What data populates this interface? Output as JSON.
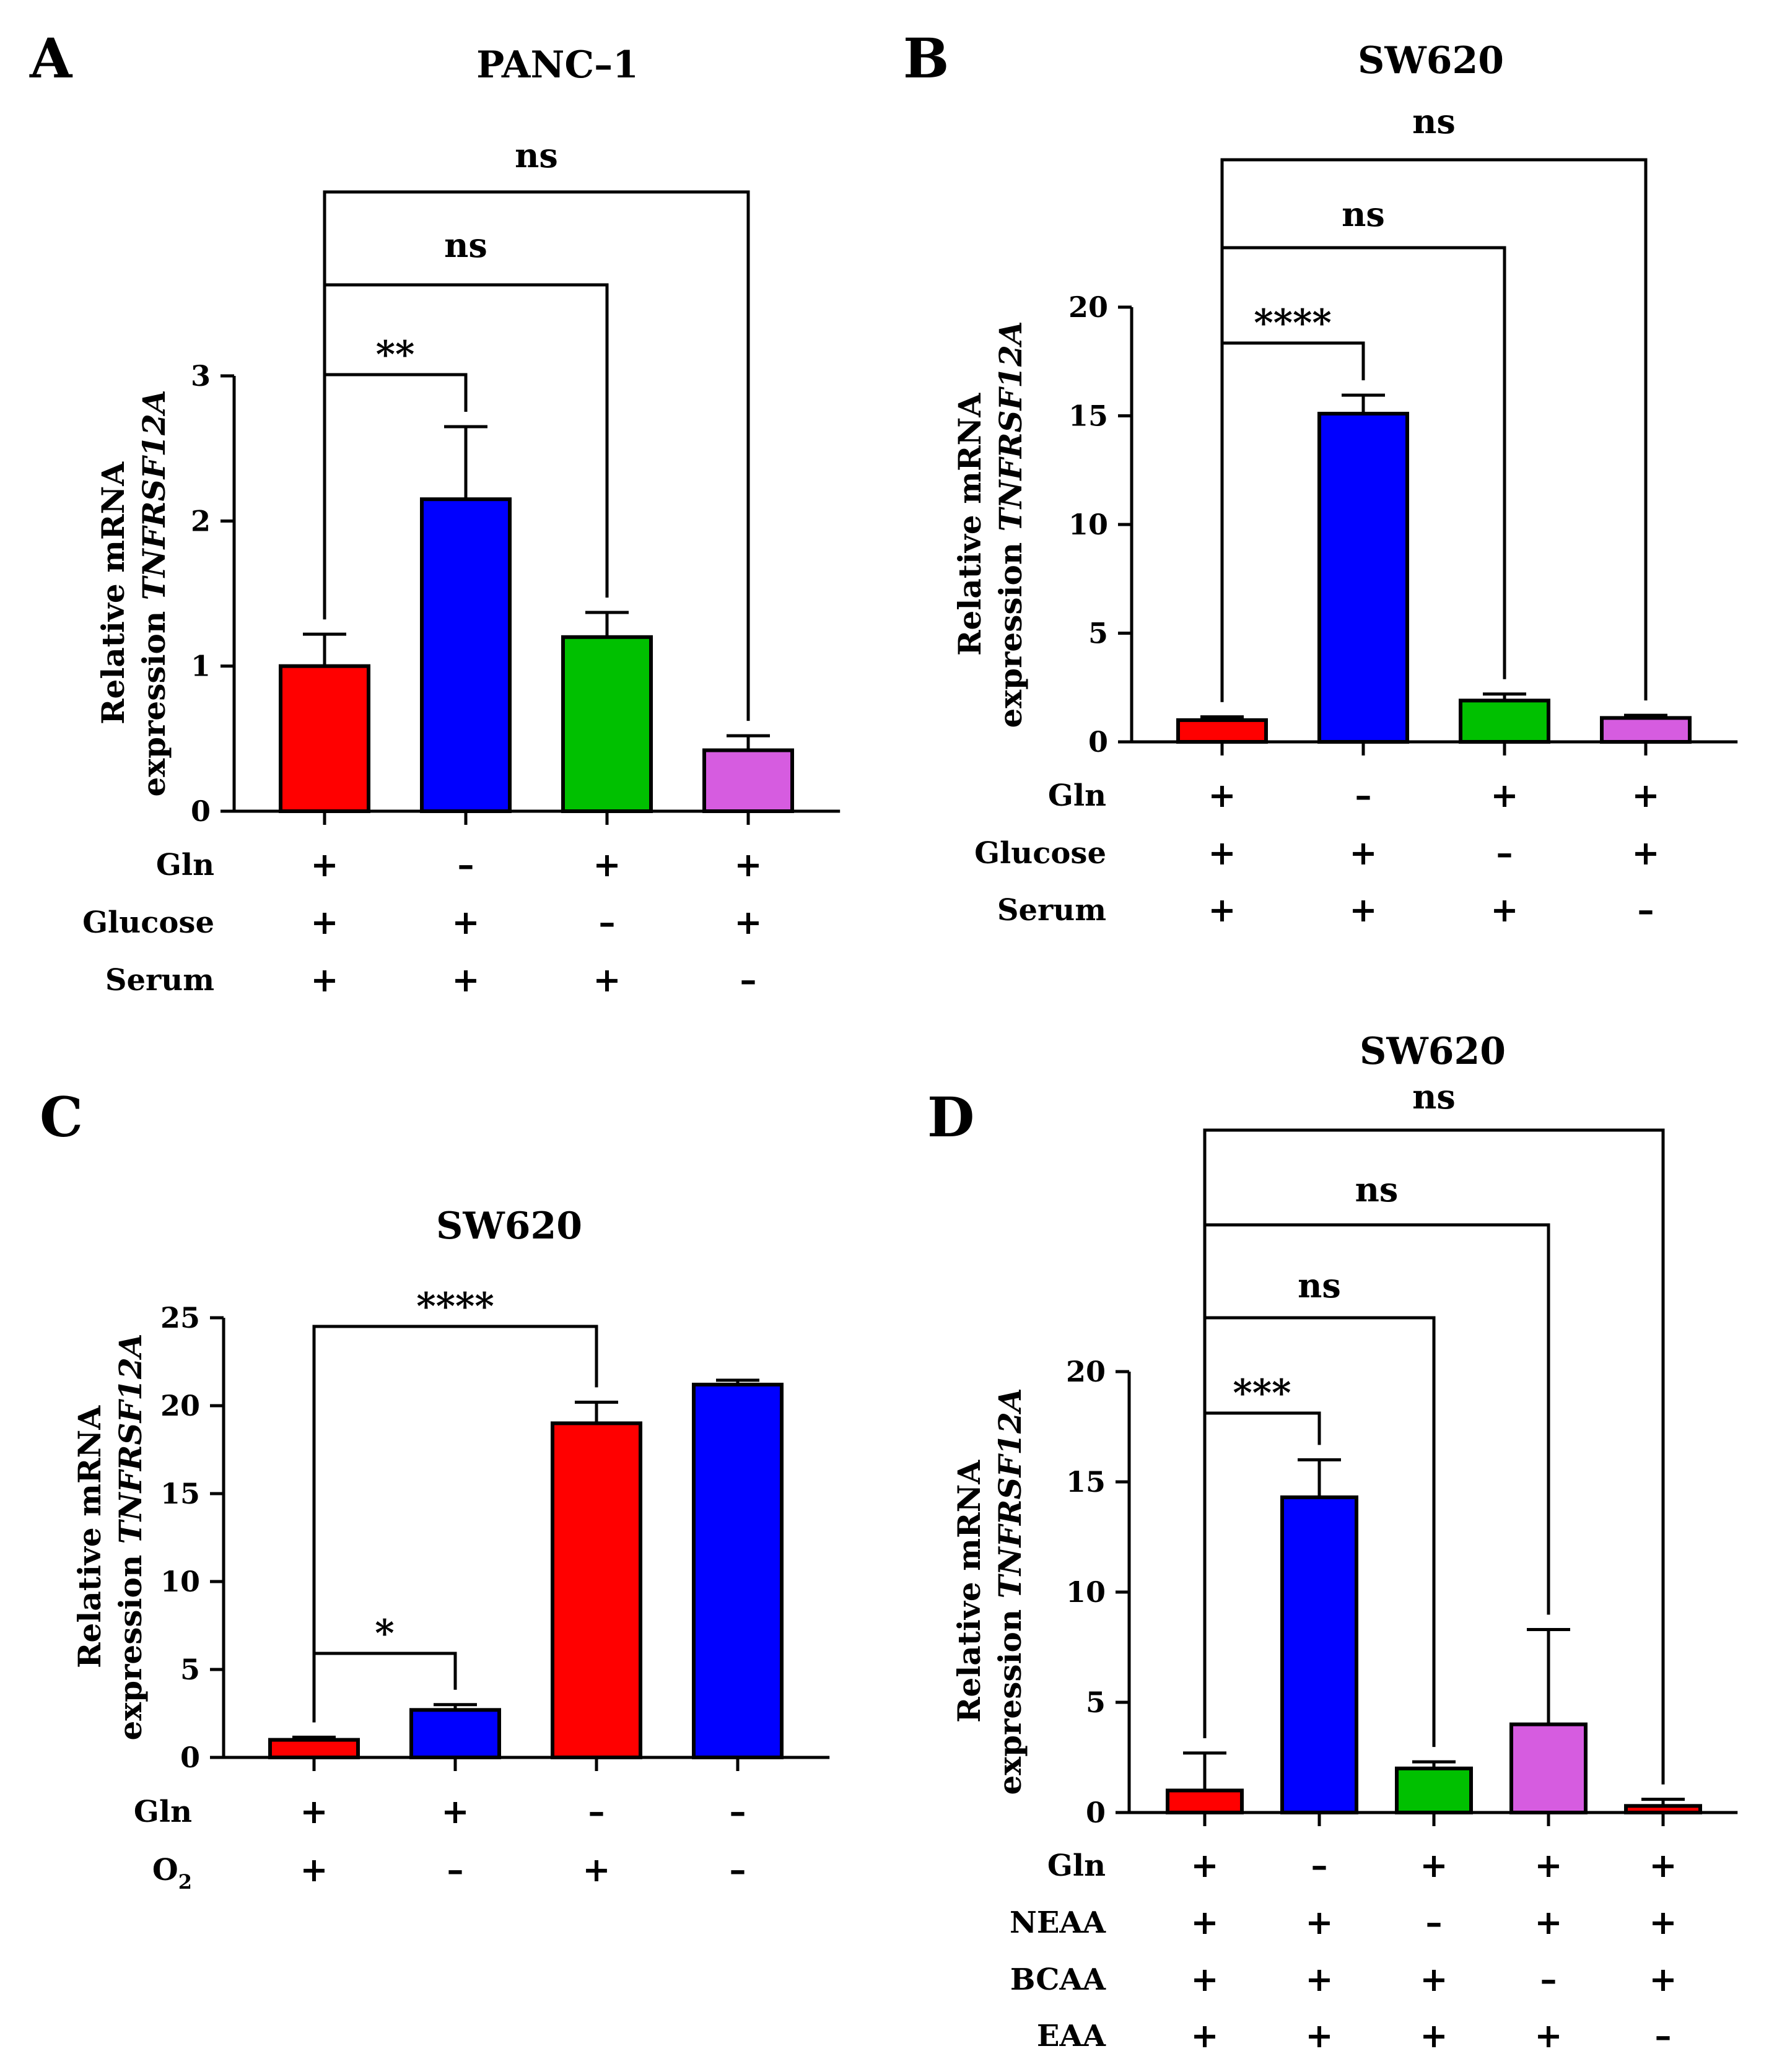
{
  "chart_data": [
    {
      "panel": "A",
      "type": "bar",
      "title": "PANC–1",
      "ylabel_line1": "Relative mRNA",
      "ylabel_line2": "expression",
      "ylabel_gene": "TNFRSF12A",
      "ylim": [
        0,
        3
      ],
      "yticks": [
        "0",
        "1",
        "2",
        "3"
      ],
      "values": [
        1.0,
        2.15,
        1.2,
        0.42
      ],
      "errors": [
        0.22,
        0.5,
        0.17,
        0.1
      ],
      "colors": [
        "#ff0000",
        "#0000ff",
        "#00c000",
        "#d65ce0"
      ],
      "conditions": [
        {
          "label": "Gln",
          "signs": [
            "+",
            "–",
            "+",
            "+"
          ]
        },
        {
          "label": "Glucose",
          "signs": [
            "+",
            "+",
            "–",
            "+"
          ]
        },
        {
          "label": "Serum",
          "signs": [
            "+",
            "+",
            "+",
            "–"
          ]
        }
      ],
      "comparisons": [
        {
          "from": 0,
          "to": 1,
          "label": "**"
        },
        {
          "from": 0,
          "to": 2,
          "label": "ns"
        },
        {
          "from": 0,
          "to": 3,
          "label": "ns"
        }
      ]
    },
    {
      "panel": "B",
      "type": "bar",
      "title": "SW620",
      "ylabel_line1": "Relative mRNA",
      "ylabel_line2": "expression",
      "ylabel_gene": "TNFRSF12A",
      "ylim": [
        0,
        20
      ],
      "yticks": [
        "0",
        "5",
        "10",
        "15",
        "20"
      ],
      "values": [
        1.0,
        15.1,
        1.9,
        1.1
      ],
      "errors": [
        0.15,
        0.85,
        0.3,
        0.12
      ],
      "colors": [
        "#ff0000",
        "#0000ff",
        "#00c000",
        "#d65ce0"
      ],
      "conditions": [
        {
          "label": "Gln",
          "signs": [
            "+",
            "–",
            "+",
            "+"
          ]
        },
        {
          "label": "Glucose",
          "signs": [
            "+",
            "+",
            "–",
            "+"
          ]
        },
        {
          "label": "Serum",
          "signs": [
            "+",
            "+",
            "+",
            "–"
          ]
        }
      ],
      "comparisons": [
        {
          "from": 0,
          "to": 1,
          "label": "****"
        },
        {
          "from": 0,
          "to": 2,
          "label": "ns"
        },
        {
          "from": 0,
          "to": 3,
          "label": "ns"
        }
      ]
    },
    {
      "panel": "C",
      "type": "bar",
      "title": "SW620",
      "ylabel_line1": "Relative mRNA",
      "ylabel_line2": "expression",
      "ylabel_gene": "TNFRSF12A",
      "ylim": [
        0,
        25
      ],
      "yticks": [
        "0",
        "5",
        "10",
        "15",
        "20",
        "25"
      ],
      "values": [
        1.0,
        2.7,
        19.0,
        21.2
      ],
      "errors": [
        0.15,
        0.3,
        1.2,
        0.25
      ],
      "colors": [
        "#ff0000",
        "#0000ff",
        "#ff0000",
        "#0000ff"
      ],
      "conditions": [
        {
          "label": "Gln",
          "signs": [
            "+",
            "+",
            "–",
            "–"
          ]
        },
        {
          "label": "O",
          "sub": "2",
          "signs": [
            "+",
            "–",
            "+",
            "–"
          ]
        }
      ],
      "comparisons": [
        {
          "from": 0,
          "to": 1,
          "label": "*"
        },
        {
          "from": 0,
          "to": 2,
          "label": "****"
        }
      ]
    },
    {
      "panel": "D",
      "type": "bar",
      "title": "SW620",
      "ylabel_line1": "Relative mRNA",
      "ylabel_line2": "expression",
      "ylabel_gene": "TNFRSF12A",
      "ylim": [
        0,
        20
      ],
      "yticks": [
        "0",
        "5",
        "10",
        "15",
        "20"
      ],
      "values": [
        1.0,
        14.3,
        2.0,
        4.0,
        0.3
      ],
      "errors": [
        1.7,
        1.7,
        0.3,
        4.3,
        0.3
      ],
      "colors": [
        "#ff0000",
        "#0000ff",
        "#00c000",
        "#d65ce0",
        "#ff0000"
      ],
      "conditions": [
        {
          "label": "Gln",
          "signs": [
            "+",
            "–",
            "+",
            "+",
            "+"
          ]
        },
        {
          "label": "NEAA",
          "signs": [
            "+",
            "+",
            "–",
            "+",
            "+"
          ]
        },
        {
          "label": "BCAA",
          "signs": [
            "+",
            "+",
            "+",
            "–",
            "+"
          ]
        },
        {
          "label": "EAA",
          "signs": [
            "+",
            "+",
            "+",
            "+",
            "–"
          ]
        }
      ],
      "comparisons": [
        {
          "from": 0,
          "to": 1,
          "label": "***"
        },
        {
          "from": 0,
          "to": 2,
          "label": "ns"
        },
        {
          "from": 0,
          "to": 3,
          "label": "ns"
        },
        {
          "from": 0,
          "to": 4,
          "label": "ns"
        }
      ]
    }
  ]
}
